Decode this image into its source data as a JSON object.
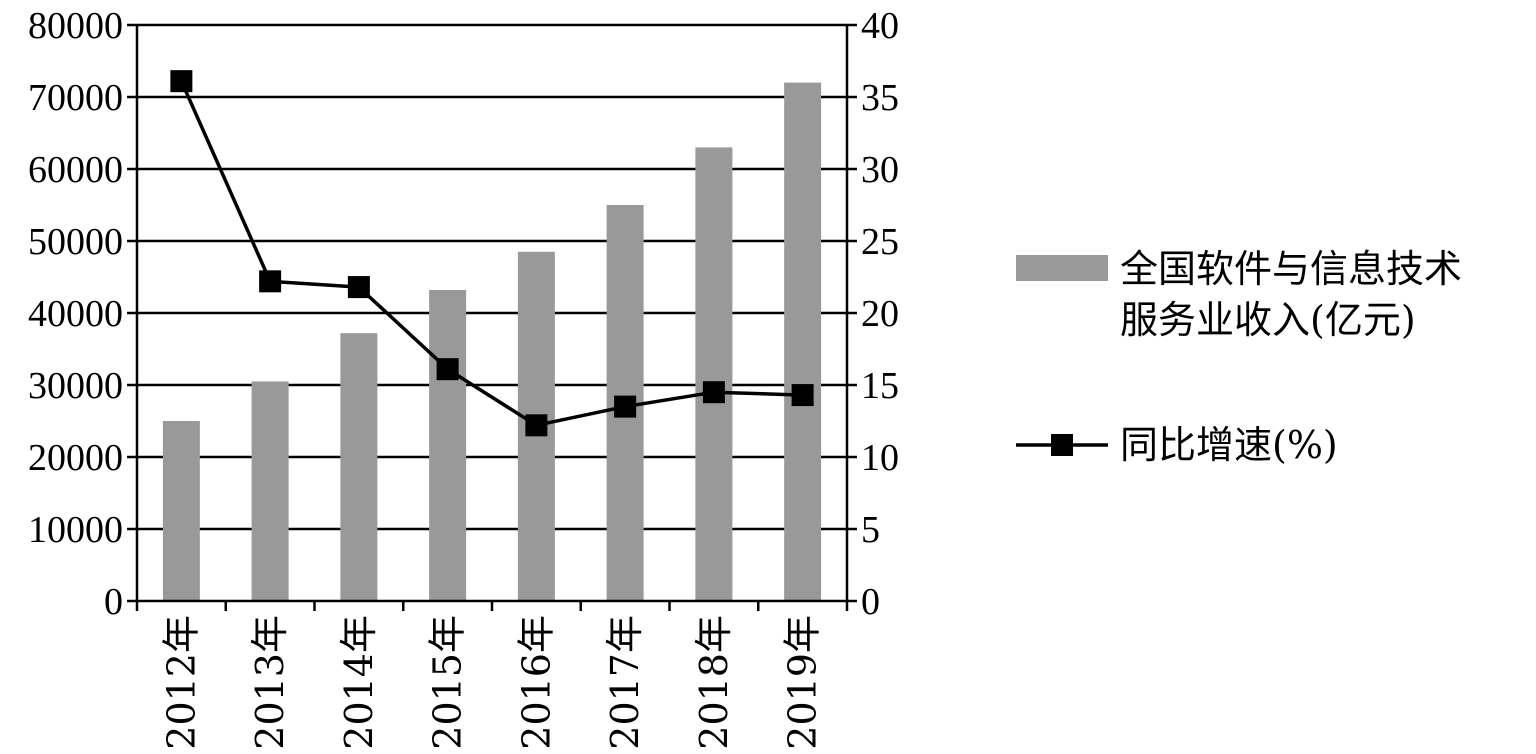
{
  "chart_data": {
    "type": "bar+line",
    "categories": [
      "2012年",
      "2013年",
      "2014年",
      "2015年",
      "2016年",
      "2017年",
      "2018年",
      "2019年"
    ],
    "series": [
      {
        "name": "全国软件与信息技术服务业收入(亿元)",
        "legend_lines": [
          "全国软件与信息技术",
          "服务业收入(亿元)"
        ],
        "type": "bar",
        "axis": "left",
        "color": "#999999",
        "values": [
          25000,
          30500,
          37200,
          43200,
          48500,
          55000,
          63000,
          72000
        ]
      },
      {
        "name": "同比增速(%)",
        "legend_lines": [
          "同比增速(%)"
        ],
        "type": "line",
        "axis": "right",
        "color": "#000000",
        "marker": "square",
        "values": [
          36.1,
          22.2,
          21.8,
          16.1,
          12.2,
          13.5,
          14.5,
          14.3
        ]
      }
    ],
    "y_left": {
      "min": 0,
      "max": 80000,
      "step": 10000
    },
    "y_right": {
      "min": 0,
      "max": 40,
      "step": 5
    },
    "grid": true,
    "legend_position": "right"
  }
}
